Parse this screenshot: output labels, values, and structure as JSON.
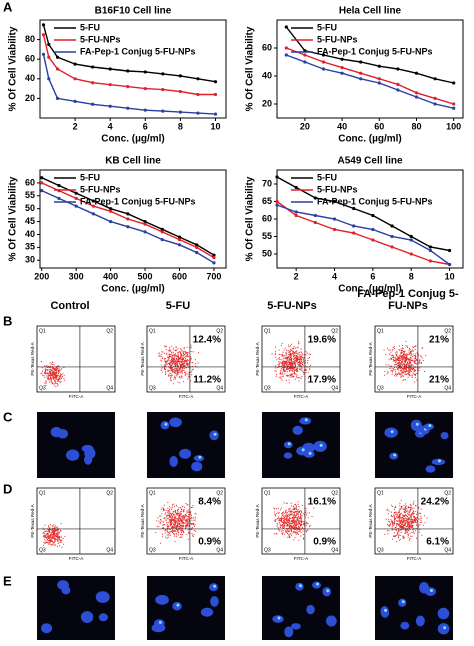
{
  "chart_data": [
    {
      "type": "line",
      "title": "B16F10 Cell line",
      "y_label": "% Of Cell Viability",
      "x_label": "Conc. (µg/ml)",
      "x": [
        0.2,
        0.5,
        1,
        2,
        3,
        4,
        5,
        6,
        7,
        8,
        9,
        10
      ],
      "xlim": [
        0,
        10.6
      ],
      "xticks": [
        2,
        4,
        6,
        8,
        10
      ],
      "ylim": [
        0,
        100
      ],
      "yticks": [
        20,
        40,
        60,
        80
      ],
      "series": [
        {
          "name": "5-FU",
          "color": "#000000",
          "values": [
            95,
            75,
            62,
            55,
            52,
            50,
            48,
            47,
            45,
            43,
            40,
            37
          ]
        },
        {
          "name": "5-FU-NPs",
          "color": "#e0202a",
          "values": [
            85,
            62,
            50,
            40,
            36,
            34,
            32,
            30,
            29,
            27,
            24,
            24
          ]
        },
        {
          "name": "FA-Pep-1 Conjug 5-FU-NPs",
          "color": "#2a3fa0",
          "values": [
            65,
            40,
            20,
            17,
            14,
            12,
            10,
            8,
            7,
            6,
            5,
            4
          ]
        }
      ]
    },
    {
      "type": "line",
      "title": "Hela Cell line",
      "y_label": "% Of Cell Viability",
      "x_label": "Conc. (µg/ml)",
      "x": [
        10,
        20,
        30,
        40,
        50,
        60,
        70,
        80,
        90,
        100
      ],
      "xlim": [
        5,
        105
      ],
      "xticks": [
        20,
        40,
        60,
        80,
        100
      ],
      "ylim": [
        10,
        80
      ],
      "yticks": [
        20,
        40,
        60
      ],
      "series": [
        {
          "name": "5-FU",
          "color": "#000000",
          "values": [
            75,
            58,
            55,
            52,
            50,
            47,
            45,
            42,
            38,
            35
          ]
        },
        {
          "name": "5-FU-NPs",
          "color": "#e0202a",
          "values": [
            60,
            55,
            50,
            46,
            42,
            38,
            34,
            28,
            24,
            20
          ]
        },
        {
          "name": "FA-Pep-1 Conjug 5-FU-NPs",
          "color": "#2a3fa0",
          "values": [
            55,
            50,
            45,
            42,
            38,
            35,
            30,
            25,
            20,
            17
          ]
        }
      ]
    },
    {
      "type": "line",
      "title": "KB Cell line",
      "y_label": "% Of Cell Viability",
      "x_label": "Conc. (µg/ml)",
      "x": [
        200,
        250,
        300,
        350,
        400,
        450,
        500,
        550,
        600,
        650,
        700
      ],
      "xlim": [
        195,
        735
      ],
      "xticks": [
        200,
        300,
        400,
        500,
        600,
        700
      ],
      "ylim": [
        27,
        65
      ],
      "yticks": [
        30,
        35,
        40,
        45,
        50,
        55,
        60
      ],
      "series": [
        {
          "name": "5-FU",
          "color": "#000000",
          "values": [
            62,
            59,
            56,
            53,
            50,
            48,
            45,
            42,
            39,
            36,
            32
          ]
        },
        {
          "name": "5-FU-NPs",
          "color": "#e0202a",
          "values": [
            60,
            57,
            54,
            51,
            49,
            46,
            44,
            41,
            38,
            35,
            31
          ]
        },
        {
          "name": "FA-Pep-1 Conjug 5-FU-NPs",
          "color": "#2a3fa0",
          "values": [
            57,
            54,
            51,
            48,
            45,
            43,
            41,
            38,
            36,
            33,
            29
          ]
        }
      ]
    },
    {
      "type": "line",
      "title": "A549 Cell line",
      "y_label": "% Of Cell Viability",
      "x_label": "Conc. (µg/ml)",
      "x": [
        1,
        2,
        3,
        4,
        5,
        6,
        7,
        8,
        9,
        10
      ],
      "xlim": [
        1,
        10.7
      ],
      "xticks": [
        2,
        4,
        6,
        8,
        10
      ],
      "ylim": [
        46,
        74
      ],
      "yticks": [
        50,
        55,
        60,
        65,
        70
      ],
      "series": [
        {
          "name": "5-FU",
          "color": "#000000",
          "values": [
            72,
            69,
            66,
            65,
            63,
            61,
            58,
            55,
            52,
            51
          ]
        },
        {
          "name": "5-FU-NPs",
          "color": "#e0202a",
          "values": [
            65,
            61,
            59,
            57,
            56,
            54,
            52,
            50,
            48,
            47
          ]
        },
        {
          "name": "FA-Pep-1 Conjug 5-FU-NPs",
          "color": "#2a3fa0",
          "values": [
            64,
            62,
            61,
            60,
            58,
            57,
            55,
            54,
            51,
            47
          ]
        }
      ]
    }
  ],
  "panel_labels": [
    "A",
    "B",
    "C",
    "D",
    "E"
  ],
  "flow_cytometry": {
    "columns": [
      "Control",
      "5-FU",
      "5-FU-NPs",
      "FA-Pep-1 Conjug 5-FU-NPs"
    ],
    "quadrant_labels": [
      "Q1",
      "Q2",
      "Q3",
      "Q4"
    ],
    "y_axis_label": "PE-Texas Red-A",
    "x_axis_label": "FITC-A",
    "rows": [
      {
        "panel": "B",
        "percentages": [
          [],
          [
            "12.4%",
            "11.2%"
          ],
          [
            "19.6%",
            "17.9%"
          ],
          [
            "21%",
            "21%"
          ]
        ]
      },
      {
        "panel": "D",
        "percentages": [
          [],
          [
            "8.4%",
            "0.9%"
          ],
          [
            "16.1%",
            "0.9%"
          ],
          [
            "24.2%",
            "6.1%"
          ]
        ]
      }
    ]
  }
}
